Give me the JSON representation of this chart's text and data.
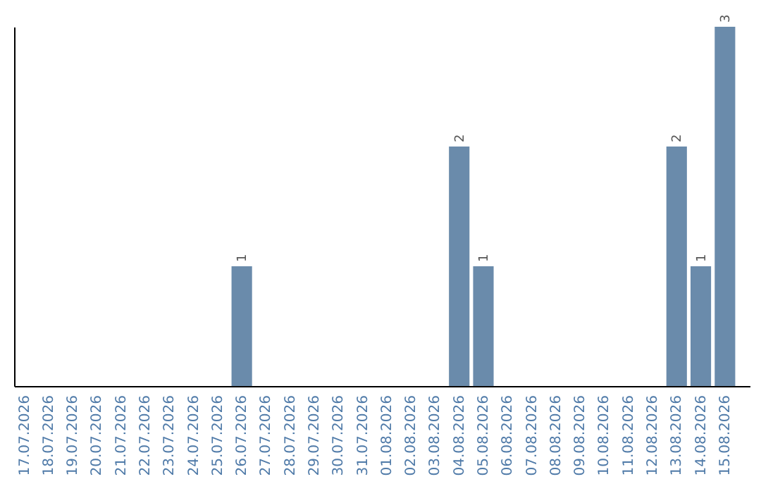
{
  "chart_data": {
    "type": "bar",
    "categories": [
      "17.07.2026",
      "18.07.2026",
      "19.07.2026",
      "20.07.2026",
      "21.07.2026",
      "22.07.2026",
      "23.07.2026",
      "24.07.2026",
      "25.07.2026",
      "26.07.2026",
      "27.07.2026",
      "28.07.2026",
      "29.07.2026",
      "30.07.2026",
      "31.07.2026",
      "01.08.2026",
      "02.08.2026",
      "03.08.2026",
      "04.08.2026",
      "05.08.2026",
      "06.08.2026",
      "07.08.2026",
      "08.08.2026",
      "09.08.2026",
      "10.08.2026",
      "11.08.2026",
      "12.08.2026",
      "13.08.2026",
      "14.08.2026",
      "15.08.2026"
    ],
    "values": [
      null,
      null,
      null,
      null,
      null,
      null,
      null,
      null,
      null,
      1,
      null,
      null,
      null,
      null,
      null,
      null,
      null,
      null,
      2,
      1,
      null,
      null,
      null,
      null,
      null,
      null,
      null,
      2,
      1,
      3
    ],
    "color": "#6a8bab",
    "data_labels": true,
    "tick_labels": "x"
  }
}
